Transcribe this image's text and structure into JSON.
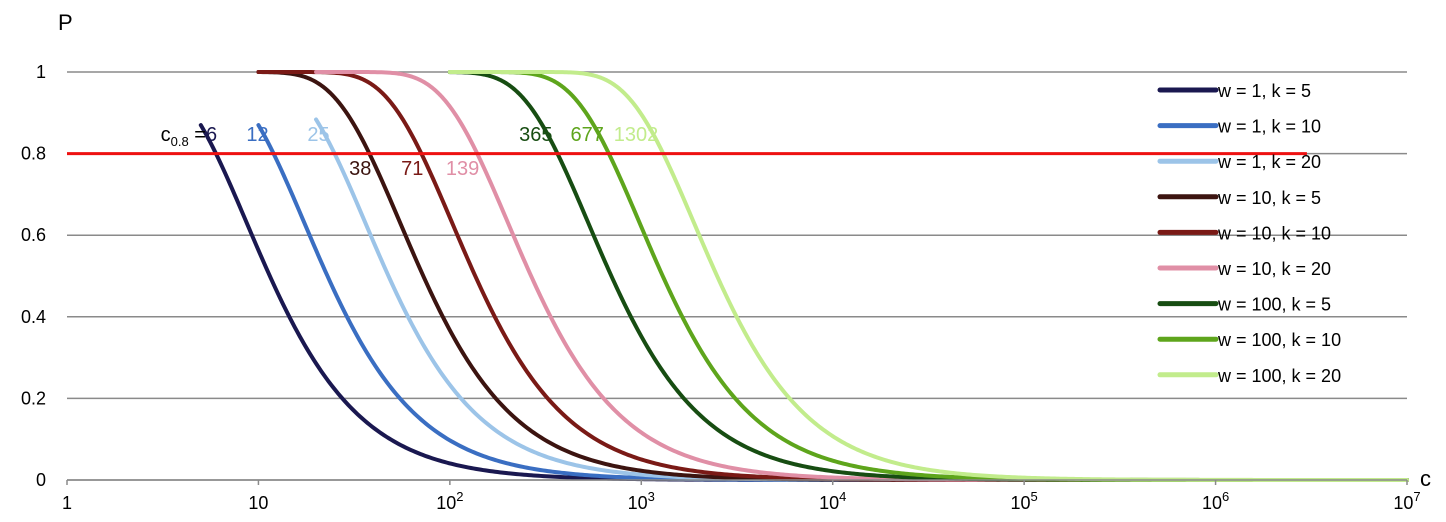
{
  "chart_data": {
    "type": "line",
    "xlabel": "c",
    "ylabel": "P",
    "x_scale": "log",
    "xlim": [
      1,
      10000000
    ],
    "ylim": [
      0,
      1
    ],
    "grid": "horizontal",
    "legend_position": "right",
    "x_tick_labels": [
      {
        "base": "1",
        "exp": ""
      },
      {
        "base": "10",
        "exp": ""
      },
      {
        "base": "10",
        "exp": "2"
      },
      {
        "base": "10",
        "exp": "3"
      },
      {
        "base": "10",
        "exp": "4"
      },
      {
        "base": "10",
        "exp": "5"
      },
      {
        "base": "10",
        "exp": "6"
      },
      {
        "base": "10",
        "exp": "7"
      }
    ],
    "y_ticks": [
      0,
      0.2,
      0.4,
      0.6,
      0.8,
      1
    ],
    "y_tick_labels": [
      "0",
      "0.2",
      "0.4",
      "0.6",
      "0.8",
      "1"
    ],
    "threshold": {
      "y": 0.8,
      "label": "0.8",
      "color": "#ee1111",
      "x_start": 1,
      "x_end": 3000000
    },
    "series": [
      {
        "name": "w = 1, k = 5",
        "color": "#1a1850",
        "x_start": 5,
        "c08": 6
      },
      {
        "name": "w = 1, k = 10",
        "color": "#3a6ec2",
        "x_start": 10,
        "c08": 12
      },
      {
        "name": "w = 1, k = 20",
        "color": "#9cc4e8",
        "x_start": 20,
        "c08": 25
      },
      {
        "name": "w = 10, k = 5",
        "color": "#3c1410",
        "x_start": 10,
        "c08": 38
      },
      {
        "name": "w = 10, k = 10",
        "color": "#7a1a16",
        "x_start": 10,
        "c08": 71
      },
      {
        "name": "w = 10, k = 20",
        "color": "#e08fa6",
        "x_start": 20,
        "c08": 139
      },
      {
        "name": "w = 100, k = 5",
        "color": "#174d12",
        "x_start": 100,
        "c08": 365
      },
      {
        "name": "w = 100, k = 10",
        "color": "#5ea51c",
        "x_start": 100,
        "c08": 677
      },
      {
        "name": "w = 100, k = 20",
        "color": "#c2ec8c",
        "x_start": 100,
        "c08": 1302
      }
    ],
    "annotations": {
      "prefix_main": "c",
      "prefix_sub": "0.8",
      "prefix_eq": " = ",
      "labels": [
        {
          "text": "6",
          "series": 0
        },
        {
          "text": "12",
          "series": 1
        },
        {
          "text": "25",
          "series": 2
        },
        {
          "text": "38",
          "series": 3
        },
        {
          "text": "71",
          "series": 4
        },
        {
          "text": "139",
          "series": 5
        },
        {
          "text": "365",
          "series": 6
        },
        {
          "text": "677",
          "series": 7
        },
        {
          "text": "1302",
          "series": 8
        }
      ]
    }
  }
}
